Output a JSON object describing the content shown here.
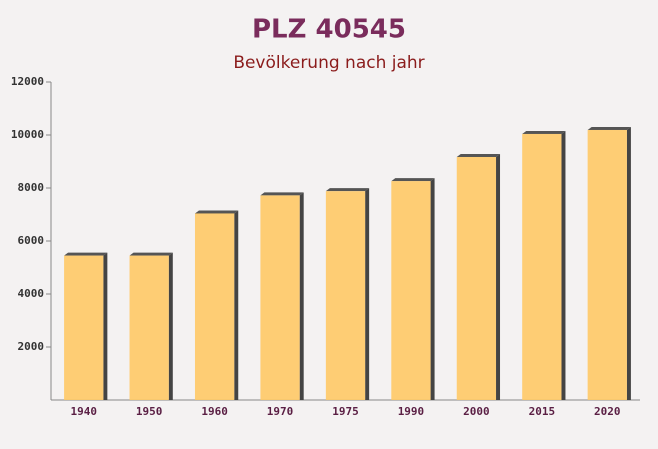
{
  "chart_data": {
    "type": "bar",
    "title": "PLZ 40545",
    "subtitle": "Bevölkerung nach jahr",
    "categories": [
      "1940",
      "1950",
      "1960",
      "1970",
      "1975",
      "1990",
      "2000",
      "2015",
      "2020"
    ],
    "values": [
      5450,
      5450,
      7040,
      7720,
      7880,
      8260,
      9170,
      10040,
      10190
    ],
    "color": "#ffc966",
    "ylim": [
      0,
      12000
    ],
    "yticks": [
      2000,
      4000,
      6000,
      8000,
      10000,
      12000
    ]
  }
}
